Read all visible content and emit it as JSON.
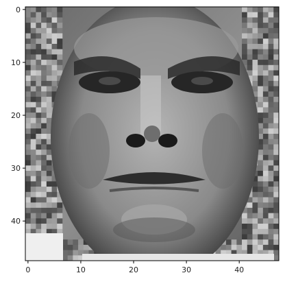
{
  "chart_data": {
    "type": "heatmap",
    "title": "",
    "xlabel": "",
    "ylabel": "",
    "colormap": "gray",
    "grid": false,
    "legend": "none",
    "image_rows": 48,
    "image_cols": 48,
    "xlim": [
      -0.5,
      47.5
    ],
    "ylim": [
      47.5,
      -0.5
    ],
    "x_ticks": [
      0,
      10,
      20,
      30,
      40
    ],
    "y_ticks": [
      0,
      10,
      20,
      30,
      40
    ],
    "x_tick_labels": [
      "0",
      "10",
      "20",
      "30",
      "40"
    ],
    "y_tick_labels": [
      "0",
      "10",
      "20",
      "30",
      "40"
    ]
  }
}
